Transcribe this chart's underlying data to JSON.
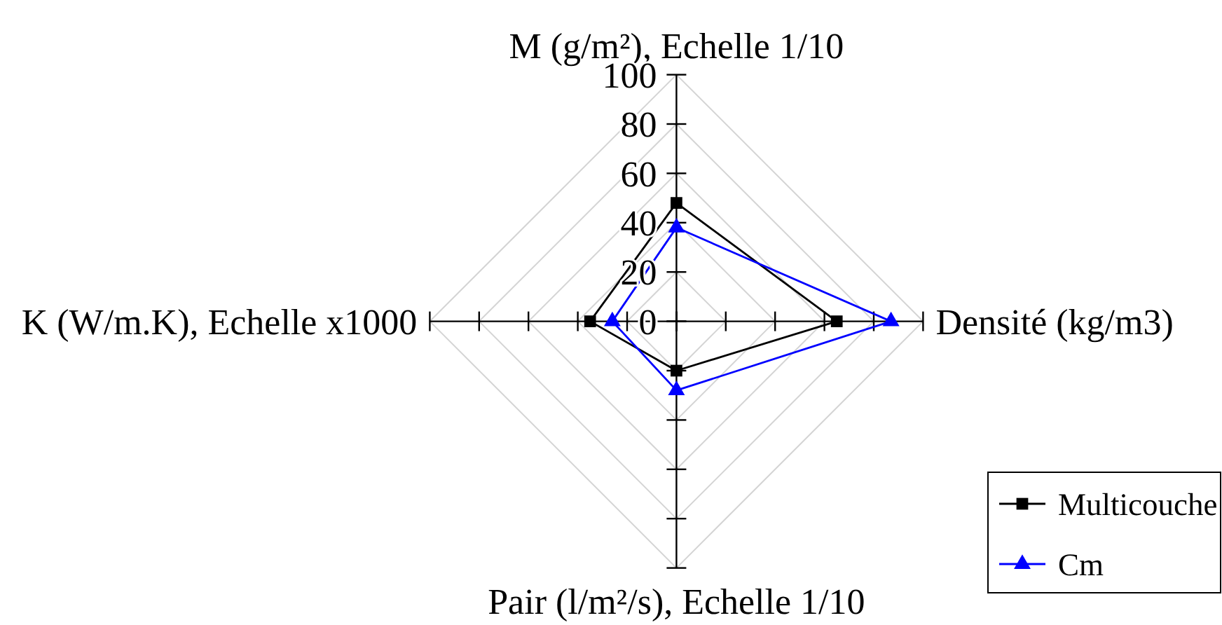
{
  "chart_data": {
    "type": "radar",
    "categories": [
      "M (g/m²), Echelle 1/10",
      "Densité (kg/m3)",
      "Pair (l/m²/s), Echelle 1/10",
      "K (W/m.K), Echelle x1000"
    ],
    "series": [
      {
        "name": "Multicouche",
        "color": "#000000",
        "values": [
          48,
          65,
          20,
          35
        ],
        "marker": "square"
      },
      {
        "name": "Cm",
        "color": "#0000ff",
        "values": [
          38,
          87,
          28,
          26
        ],
        "marker": "triangle"
      }
    ],
    "ylim": [
      0,
      100
    ],
    "yticks": [
      0,
      20,
      40,
      60,
      80,
      100
    ],
    "grid": true,
    "legend": "bottom right"
  }
}
